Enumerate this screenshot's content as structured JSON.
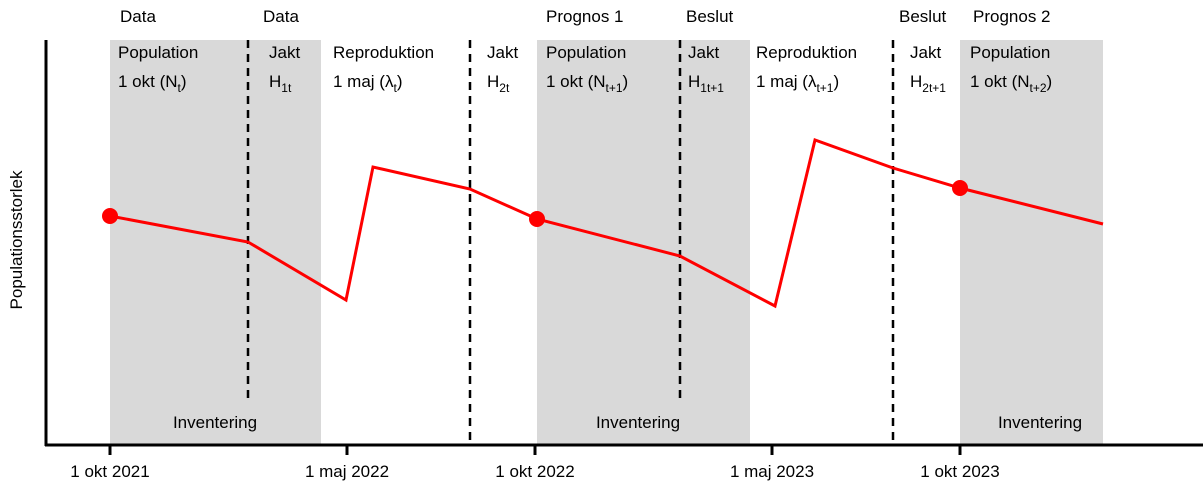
{
  "y_axis_label": "Populationsstorlek",
  "top_labels": [
    "Data",
    "Data",
    "Prognos 1",
    "Beslut",
    "Beslut",
    "Prognos 2"
  ],
  "sections": [
    {
      "lines": [
        [
          "Population"
        ],
        [
          "1 okt (N",
          "t",
          ")"
        ]
      ]
    },
    {
      "lines": [
        [
          "Jakt"
        ],
        [
          "H",
          "1t"
        ]
      ]
    },
    {
      "lines": [
        [
          "Reproduktion"
        ],
        [
          "1 maj (λ",
          "t",
          ")"
        ]
      ]
    },
    {
      "lines": [
        [
          "Jakt"
        ],
        [
          "H",
          "2t"
        ]
      ]
    },
    {
      "lines": [
        [
          "Population"
        ],
        [
          "1 okt (N",
          "t+1",
          ")"
        ]
      ]
    },
    {
      "lines": [
        [
          "Jakt"
        ],
        [
          "H",
          "1t+1"
        ]
      ]
    },
    {
      "lines": [
        [
          "Reproduktion"
        ],
        [
          "1 maj (λ",
          "t+1",
          ")"
        ]
      ]
    },
    {
      "lines": [
        [
          "Jakt"
        ],
        [
          "H",
          "2t+1"
        ]
      ]
    },
    {
      "lines": [
        [
          "Population"
        ],
        [
          "1 okt (N",
          "t+2",
          ")"
        ]
      ]
    }
  ],
  "inventory_labels": [
    "Inventering",
    "Inventering",
    "Inventering"
  ],
  "x_labels": [
    "1 okt 2021",
    "1 maj 2022",
    "1 okt 2022",
    "1 maj 2023",
    "1 okt 2023"
  ]
}
